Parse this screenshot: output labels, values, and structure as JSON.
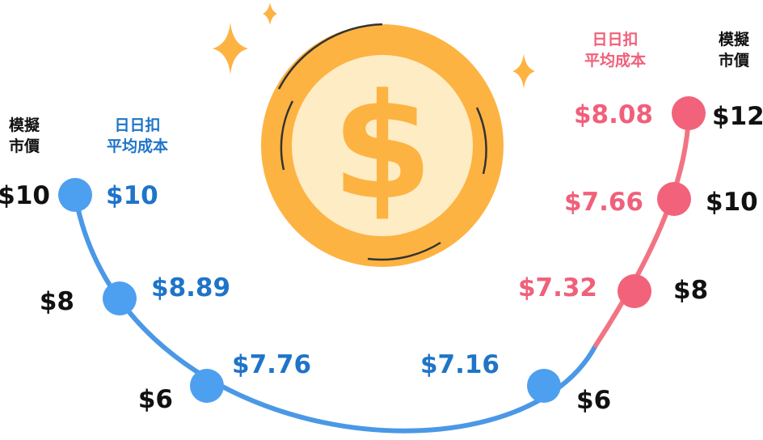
{
  "colors": {
    "blue_line": "#4a98e6",
    "blue_dot": "#4d9ff0",
    "blue_text": "#1f74c8",
    "red_line": "#f27484",
    "red_dot": "#f2627a",
    "red_text": "#f0607a",
    "coin_outer": "#fdb342",
    "coin_inner": "#feecc4",
    "coin_symbol": "#fdb342",
    "sparkle": "#fdb342"
  },
  "icons": {
    "coin": "dollar-coin-icon",
    "sparkle": "sparkle-icon"
  },
  "coin": {
    "symbol": "$"
  },
  "left": {
    "market_header_line1": "模擬",
    "market_header_line2": "市價",
    "avg_header_line1": "日日扣",
    "avg_header_line2": "平均成本",
    "points": [
      {
        "market_price": "$10",
        "avg_cost": "$10"
      },
      {
        "market_price": "$8",
        "avg_cost": "$8.89"
      },
      {
        "market_price": "$6",
        "avg_cost": "$7.76"
      }
    ]
  },
  "right": {
    "market_header_line1": "模擬",
    "market_header_line2": "市價",
    "avg_header_line1": "日日扣",
    "avg_header_line2": "平均成本",
    "points": [
      {
        "market_price": "$6",
        "avg_cost": "$7.16"
      },
      {
        "market_price": "$8",
        "avg_cost": "$7.32"
      },
      {
        "market_price": "$10",
        "avg_cost": "$7.66"
      },
      {
        "market_price": "$12",
        "avg_cost": "$8.08"
      }
    ]
  }
}
